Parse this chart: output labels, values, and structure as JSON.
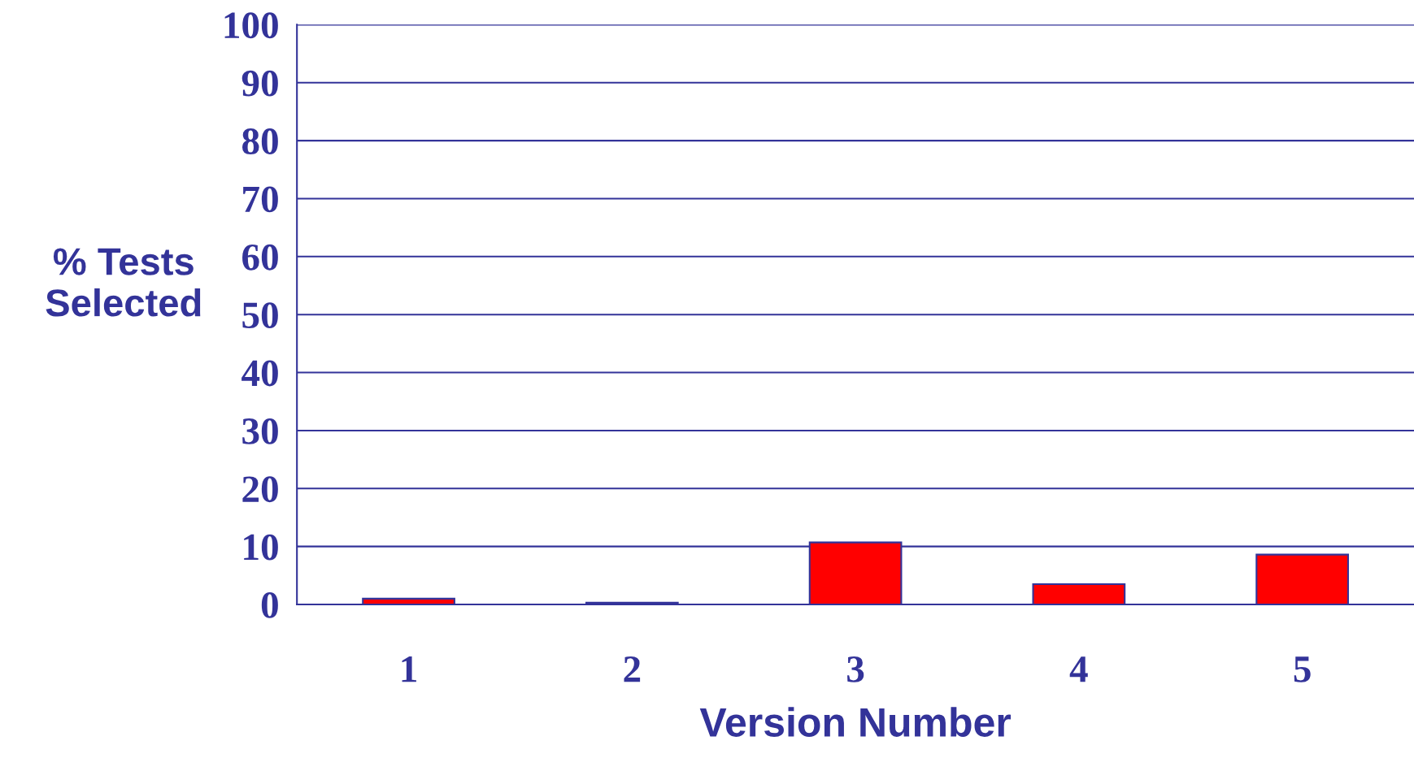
{
  "chart_data": {
    "type": "bar",
    "xlabel": "Version Number",
    "ylabel": "% Tests\nSelected",
    "categories": [
      "1",
      "2",
      "3",
      "4",
      "5"
    ],
    "values": [
      1.0,
      0.3,
      10.7,
      3.5,
      8.6
    ],
    "color": "#ff0000",
    "ylim": [
      0,
      100
    ],
    "yticks": [
      0,
      10,
      20,
      30,
      40,
      50,
      60,
      70,
      80,
      90,
      100
    ],
    "grid": "y"
  }
}
